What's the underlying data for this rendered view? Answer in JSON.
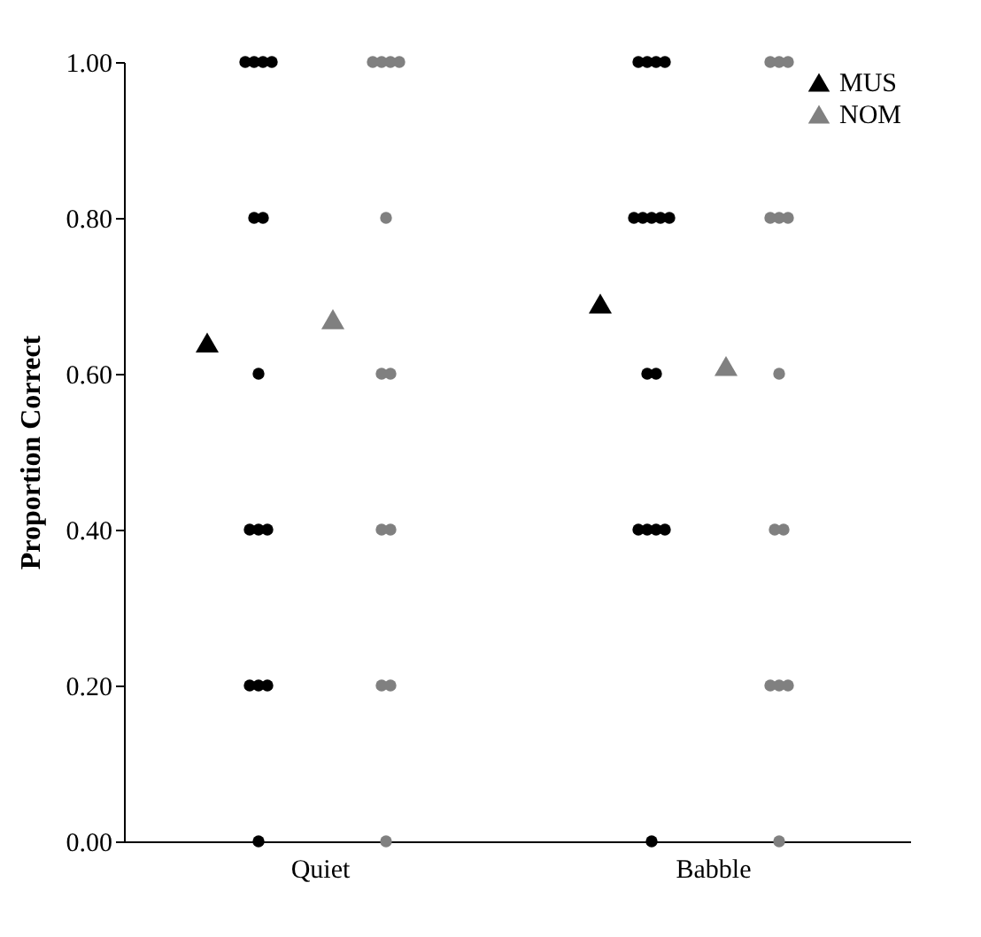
{
  "chart_data": {
    "type": "scatter",
    "ylabel": "Proportion Correct",
    "categories": [
      "Quiet",
      "Babble"
    ],
    "ylim": [
      0,
      1
    ],
    "yticks": [
      {
        "value": 0,
        "label": "0.00"
      },
      {
        "value": 0.2,
        "label": "0.20"
      },
      {
        "value": 0.4,
        "label": "0.40"
      },
      {
        "value": 0.6,
        "label": "0.60"
      },
      {
        "value": 0.8,
        "label": "0.80"
      },
      {
        "value": 1,
        "label": "1.00"
      }
    ],
    "grid": false,
    "legend": "top right",
    "series": [
      {
        "marker": "circle",
        "color": "#000000",
        "x": [
          "Quiet",
          "Quiet",
          "Quiet",
          "Quiet",
          "Quiet",
          "Quiet",
          "Quiet",
          "Quiet",
          "Quiet",
          "Quiet",
          "Quiet",
          "Quiet",
          "Quiet",
          "Quiet",
          "Babble",
          "Babble",
          "Babble",
          "Babble",
          "Babble",
          "Babble",
          "Babble",
          "Babble",
          "Babble",
          "Babble",
          "Babble",
          "Babble",
          "Babble",
          "Babble",
          "Babble",
          "Babble"
        ],
        "values": [
          1,
          1,
          1,
          1,
          0.8,
          0.8,
          0.6,
          0.4,
          0.4,
          0.4,
          0.2,
          0.2,
          0.2,
          0,
          1,
          1,
          1,
          1,
          0.8,
          0.8,
          0.8,
          0.8,
          0.8,
          0.6,
          0.6,
          0.4,
          0.4,
          0.4,
          0.4,
          0
        ]
      },
      {
        "marker": "circle",
        "color": "#808080",
        "x": [
          "Quiet",
          "Quiet",
          "Quiet",
          "Quiet",
          "Quiet",
          "Quiet",
          "Quiet",
          "Quiet",
          "Quiet",
          "Quiet",
          "Quiet",
          "Quiet",
          "Babble",
          "Babble",
          "Babble",
          "Babble",
          "Babble",
          "Babble",
          "Babble",
          "Babble",
          "Babble",
          "Babble",
          "Babble",
          "Babble",
          "Babble"
        ],
        "values": [
          1,
          1,
          1,
          1,
          0.8,
          0.6,
          0.6,
          0.4,
          0.4,
          0.2,
          0.2,
          0,
          1,
          1,
          1,
          0.8,
          0.8,
          0.8,
          0.6,
          0.4,
          0.4,
          0.2,
          0.2,
          0.2,
          0
        ]
      },
      {
        "marker": "triangle",
        "name": "MUS",
        "color": "#000000",
        "x": [
          "Quiet",
          "Babble"
        ],
        "values": [
          0.64,
          0.69
        ]
      },
      {
        "marker": "triangle",
        "name": "NOM",
        "color": "#808080",
        "x": [
          "Quiet",
          "Babble"
        ],
        "values": [
          0.67,
          0.61
        ]
      }
    ]
  }
}
